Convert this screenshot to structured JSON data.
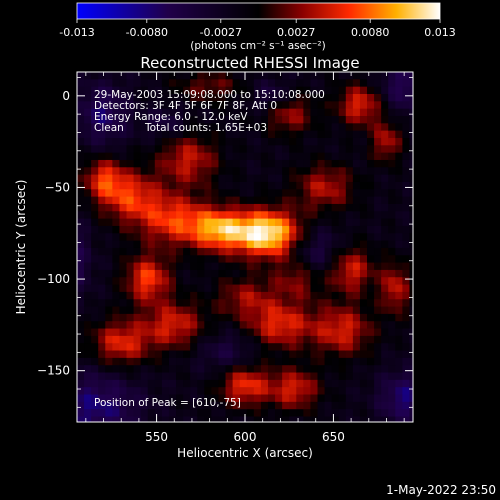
{
  "chart_data": {
    "type": "heatmap",
    "title": "Reconstructed RHESSI Image",
    "xlabel": "Heliocentric X (arcsec)",
    "ylabel": "Heliocentric Y (arcsec)",
    "xlim": [
      505,
      695
    ],
    "ylim": [
      -178,
      13
    ],
    "x_ticks": [
      550,
      600,
      650
    ],
    "y_ticks": [
      0,
      -50,
      -100,
      -150
    ],
    "colorbar": {
      "ticks": [
        "-0.013",
        "-0.0080",
        "-0.0027",
        "0.0027",
        "0.0080",
        "0.013"
      ],
      "range": [
        -0.013,
        0.013
      ],
      "unit_label": "(photons cm⁻² s⁻¹ asec⁻²)",
      "colormap": [
        "#0000ff",
        "#1a0040",
        "#000000",
        "#8a0000",
        "#ff3300",
        "#ffff99",
        "#ffffff"
      ]
    },
    "annotations": [
      "29-May-2003 15:09:08.000 to 15:10:08.000",
      "Detectors: 3F 4F 5F 6F 7F 8F, Att 0",
      "Energy Range: 6.0 - 12.0 keV",
      "Clean",
      "Total counts: 1.65E+03",
      "Position of Peak = [610,-75]"
    ],
    "peak": {
      "x": 610,
      "y": -75,
      "value": 0.013
    },
    "sources": [
      {
        "x": 612,
        "y": -75,
        "sx": 14,
        "sy": 9,
        "amp": 0.0145
      },
      {
        "x": 585,
        "y": -73,
        "sx": 11,
        "sy": 8,
        "amp": 0.0095
      },
      {
        "x": 560,
        "y": -68,
        "sx": 14,
        "sy": 10,
        "amp": 0.008
      },
      {
        "x": 535,
        "y": -55,
        "sx": 12,
        "sy": 10,
        "amp": 0.0075
      },
      {
        "x": 545,
        "y": -100,
        "sx": 9,
        "sy": 9,
        "amp": 0.0085
      },
      {
        "x": 568,
        "y": -35,
        "sx": 12,
        "sy": 10,
        "amp": 0.0065
      },
      {
        "x": 520,
        "y": -45,
        "sx": 8,
        "sy": 8,
        "amp": 0.007
      },
      {
        "x": 530,
        "y": -135,
        "sx": 12,
        "sy": 9,
        "amp": 0.0075
      },
      {
        "x": 560,
        "y": -125,
        "sx": 12,
        "sy": 9,
        "amp": 0.007
      },
      {
        "x": 620,
        "y": -125,
        "sx": 13,
        "sy": 9,
        "amp": 0.0075
      },
      {
        "x": 655,
        "y": -128,
        "sx": 12,
        "sy": 10,
        "amp": 0.007
      },
      {
        "x": 600,
        "y": -158,
        "sx": 10,
        "sy": 8,
        "amp": 0.008
      },
      {
        "x": 628,
        "y": -160,
        "sx": 10,
        "sy": 8,
        "amp": 0.007
      },
      {
        "x": 660,
        "y": -95,
        "sx": 9,
        "sy": 9,
        "amp": 0.007
      },
      {
        "x": 685,
        "y": -105,
        "sx": 6,
        "sy": 10,
        "amp": 0.0065
      },
      {
        "x": 645,
        "y": -50,
        "sx": 12,
        "sy": 9,
        "amp": 0.006
      },
      {
        "x": 665,
        "y": -5,
        "sx": 9,
        "sy": 8,
        "amp": 0.0075
      },
      {
        "x": 680,
        "y": -25,
        "sx": 6,
        "sy": 8,
        "amp": 0.006
      },
      {
        "x": 625,
        "y": -10,
        "sx": 10,
        "sy": 8,
        "amp": 0.0055
      },
      {
        "x": 600,
        "y": -110,
        "sx": 12,
        "sy": 8,
        "amp": 0.005
      },
      {
        "x": 630,
        "y": -100,
        "sx": 10,
        "sy": 8,
        "amp": 0.005
      },
      {
        "x": 580,
        "y": 5,
        "sx": 14,
        "sy": 6,
        "amp": 0.004
      },
      {
        "x": 515,
        "y": -170,
        "sx": 18,
        "sy": 14,
        "amp": -0.006
      },
      {
        "x": 520,
        "y": -10,
        "sx": 10,
        "sy": 12,
        "amp": -0.0055
      },
      {
        "x": 690,
        "y": -165,
        "sx": 10,
        "sy": 10,
        "amp": -0.006
      },
      {
        "x": 690,
        "y": 5,
        "sx": 10,
        "sy": 10,
        "amp": -0.005
      },
      {
        "x": 615,
        "y": 0,
        "sx": 8,
        "sy": 6,
        "amp": -0.004
      },
      {
        "x": 640,
        "y": -85,
        "sx": 10,
        "sy": 10,
        "amp": -0.0045
      },
      {
        "x": 590,
        "y": -140,
        "sx": 12,
        "sy": 8,
        "amp": -0.0035
      },
      {
        "x": 555,
        "y": -15,
        "sx": 8,
        "sy": 6,
        "amp": -0.0035
      },
      {
        "x": 505,
        "y": -90,
        "sx": 6,
        "sy": 14,
        "amp": -0.004
      }
    ],
    "grid_step": 4,
    "grid": false
  },
  "footer": {
    "timestamp": "1-May-2022 23:50"
  }
}
